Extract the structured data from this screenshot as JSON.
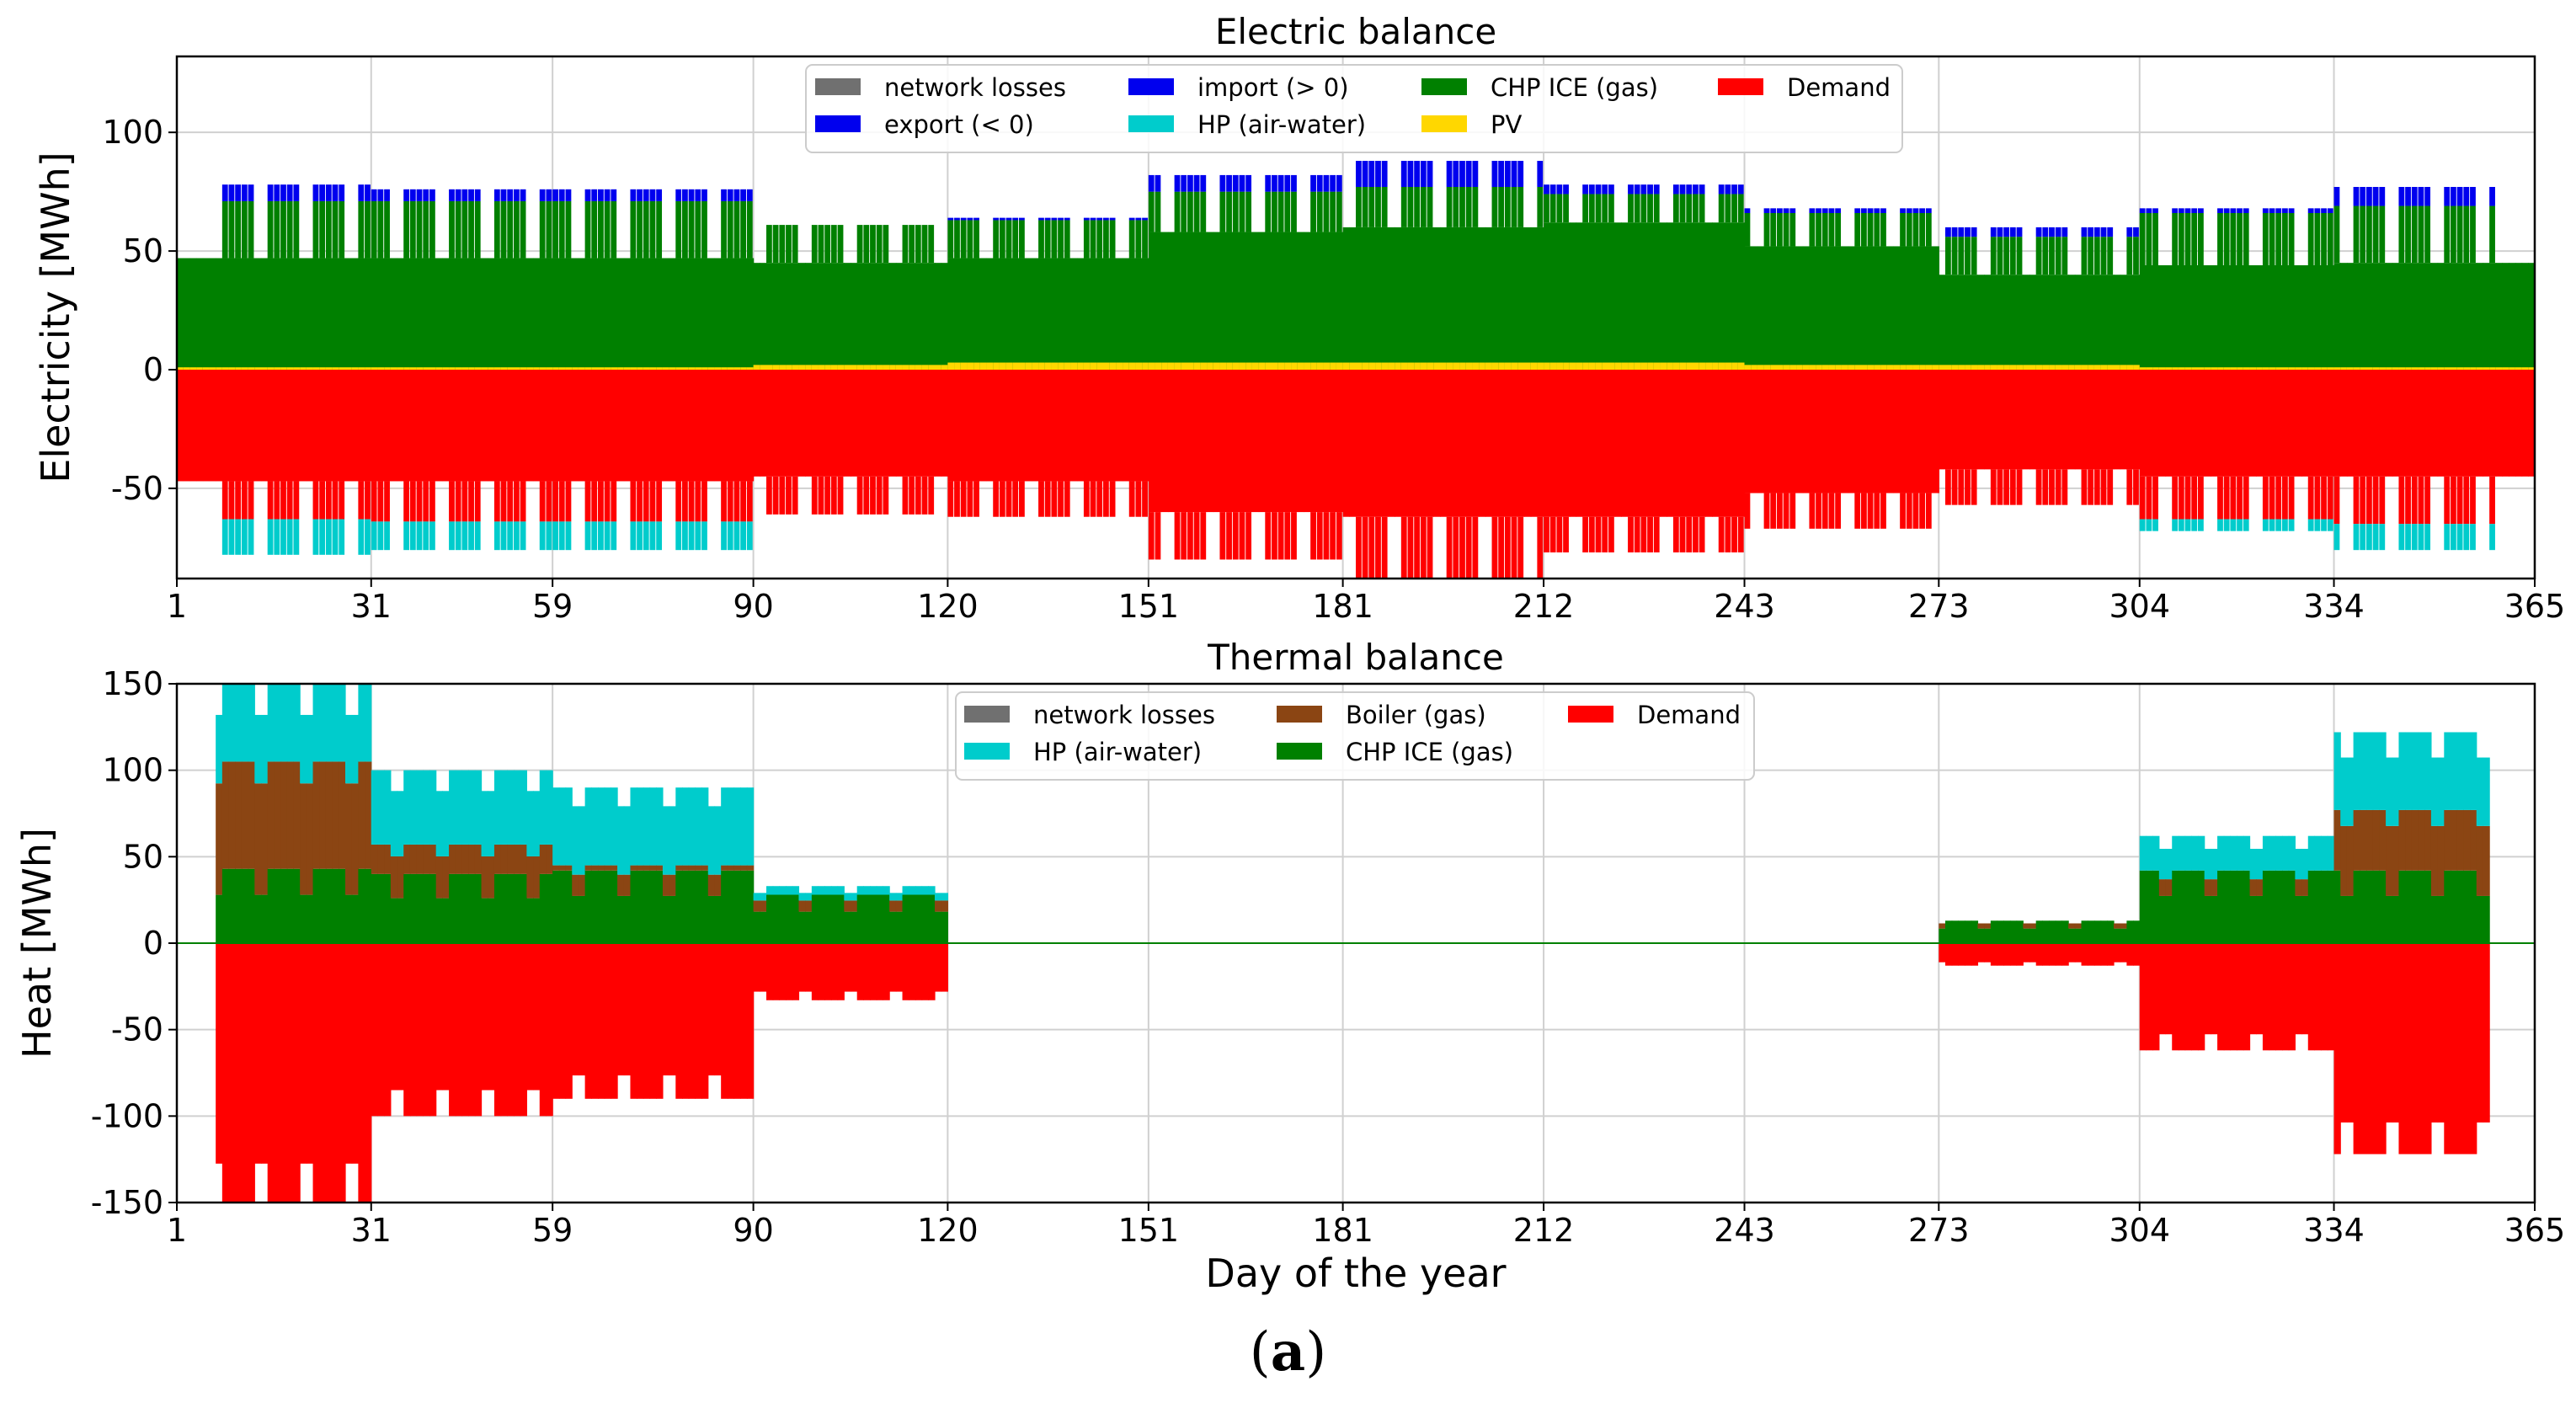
{
  "caption": {
    "open": "(",
    "letter": "a",
    "close": ")"
  },
  "chart_data": [
    {
      "type": "area",
      "title": "Electric balance",
      "xlabel": "",
      "ylabel": "Electricity [MWh]",
      "xlim": [
        1,
        365
      ],
      "ylim": [
        -88,
        132
      ],
      "xticks": [
        1,
        31,
        59,
        90,
        120,
        151,
        181,
        212,
        243,
        273,
        304,
        334,
        365
      ],
      "yticks": [
        -50,
        0,
        50,
        100
      ],
      "legend_position": "top-center",
      "legend": [
        {
          "name": "network losses",
          "color": "#707070"
        },
        {
          "name": "export (< 0)",
          "color": "#0000ee"
        },
        {
          "name": "import (> 0)",
          "color": "#0000ee"
        },
        {
          "name": "HP (air-water)",
          "color": "#00cccc"
        },
        {
          "name": "CHP ICE (gas)",
          "color": "#008000"
        },
        {
          "name": "PV",
          "color": "#ffd700"
        },
        {
          "name": "Demand",
          "color": "#ff0000"
        }
      ],
      "monthly_profile": {
        "months_start_day": [
          1,
          31,
          59,
          90,
          120,
          151,
          181,
          212,
          243,
          273,
          304,
          334
        ],
        "chp_peak": [
          71,
          71,
          71,
          61,
          63,
          75,
          77,
          74,
          66,
          56,
          66,
          69
        ],
        "chp_base": [
          47,
          47,
          47,
          45,
          47,
          58,
          60,
          62,
          52,
          40,
          44,
          45
        ],
        "import_peak": [
          78,
          76,
          76,
          61,
          64,
          82,
          88,
          78,
          68,
          60,
          68,
          77
        ],
        "demand_peak": [
          -63,
          -64,
          -64,
          -61,
          -62,
          -80,
          -88,
          -77,
          -67,
          -57,
          -63,
          -65
        ],
        "demand_base": [
          -47,
          -47,
          -47,
          -45,
          -47,
          -60,
          -62,
          -62,
          -52,
          -42,
          -45,
          -45
        ],
        "hp_bottom": [
          -78,
          -76,
          -76,
          -61,
          -62,
          -80,
          -88,
          -77,
          -67,
          -57,
          -68,
          -76
        ],
        "pv_peak": [
          1,
          1,
          1,
          2,
          3,
          3,
          3,
          3,
          2,
          2,
          1,
          1
        ]
      }
    },
    {
      "type": "area",
      "title": "Thermal balance",
      "xlabel": "Day of the year",
      "ylabel": "Heat [MWh]",
      "xlim": [
        1,
        365
      ],
      "ylim": [
        -150,
        150
      ],
      "xticks": [
        1,
        31,
        59,
        90,
        120,
        151,
        181,
        212,
        243,
        273,
        304,
        334,
        365
      ],
      "yticks": [
        -150,
        -100,
        -50,
        0,
        50,
        100,
        150
      ],
      "legend_position": "top-center",
      "legend": [
        {
          "name": "network losses",
          "color": "#707070"
        },
        {
          "name": "HP (air-water)",
          "color": "#00cccc"
        },
        {
          "name": "Boiler (gas)",
          "color": "#8b4513"
        },
        {
          "name": "CHP ICE (gas)",
          "color": "#008000"
        },
        {
          "name": "Demand",
          "color": "#ff0000"
        }
      ],
      "monthly_profile": {
        "segments": [
          {
            "start": 7,
            "end": 31,
            "chp": 43,
            "boiler": 105,
            "hp": 150,
            "demand": -150
          },
          {
            "start": 31,
            "end": 59,
            "chp": 40,
            "boiler": 57,
            "hp": 100,
            "demand": -100
          },
          {
            "start": 59,
            "end": 90,
            "chp": 42,
            "boiler": 45,
            "hp": 90,
            "demand": -90
          },
          {
            "start": 90,
            "end": 120,
            "chp": 28,
            "boiler": 28,
            "hp": 33,
            "demand": -33
          },
          {
            "start": 273,
            "end": 304,
            "chp": 13,
            "boiler": 13,
            "hp": 13,
            "demand": -13
          },
          {
            "start": 304,
            "end": 334,
            "chp": 42,
            "boiler": 42,
            "hp": 62,
            "demand": -62
          },
          {
            "start": 334,
            "end": 358,
            "chp": 42,
            "boiler": 77,
            "hp": 122,
            "demand": -122
          }
        ]
      }
    }
  ]
}
